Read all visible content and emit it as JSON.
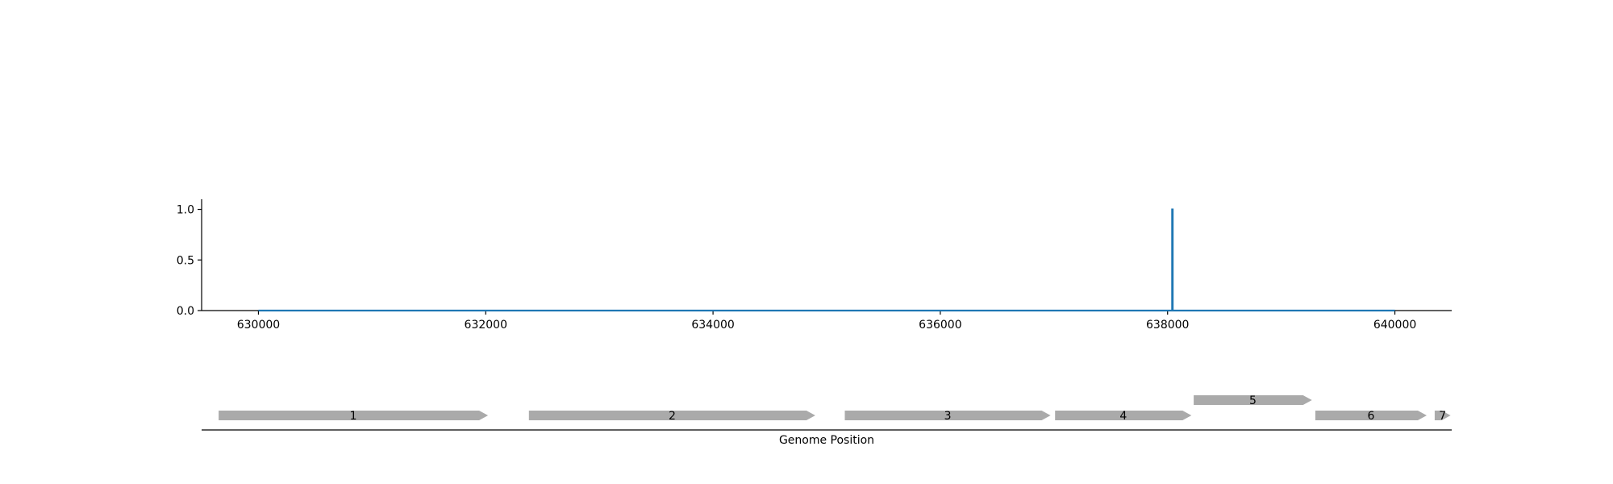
{
  "chart_data": [
    {
      "type": "line",
      "title": "",
      "xlabel": "",
      "ylabel": "",
      "xlim": [
        629500,
        640500
      ],
      "ylim": [
        0,
        1.1
      ],
      "x_ticks": [
        630000,
        632000,
        634000,
        636000,
        638000,
        640000
      ],
      "x_tick_labels": [
        "630000",
        "632000",
        "634000",
        "636000",
        "638000",
        "640000"
      ],
      "y_ticks": [
        0.0,
        0.5,
        1.0
      ],
      "y_tick_labels": [
        "0.0",
        "0.5",
        "1.0"
      ],
      "grid": false,
      "series": [
        {
          "color": "#1f77b4",
          "x": [
            630000,
            638040,
            638040,
            638045,
            638045,
            640000
          ],
          "y": [
            0,
            0,
            1.0,
            1.0,
            0,
            0
          ]
        }
      ]
    },
    {
      "type": "gene-track",
      "xlabel": "Genome Position",
      "xlim": [
        629500,
        640500
      ],
      "color": "#aaaaaa",
      "genes": [
        {
          "label": "1",
          "start": 629650,
          "end": 632020,
          "row": 0
        },
        {
          "label": "2",
          "start": 632380,
          "end": 634900,
          "row": 0
        },
        {
          "label": "3",
          "start": 635160,
          "end": 636970,
          "row": 0
        },
        {
          "label": "4",
          "start": 637010,
          "end": 638210,
          "row": 0
        },
        {
          "label": "5",
          "start": 638230,
          "end": 639270,
          "row": 1
        },
        {
          "label": "6",
          "start": 639300,
          "end": 640280,
          "row": 0
        },
        {
          "label": "7",
          "start": 640350,
          "end": 640490,
          "row": 0
        }
      ]
    }
  ]
}
